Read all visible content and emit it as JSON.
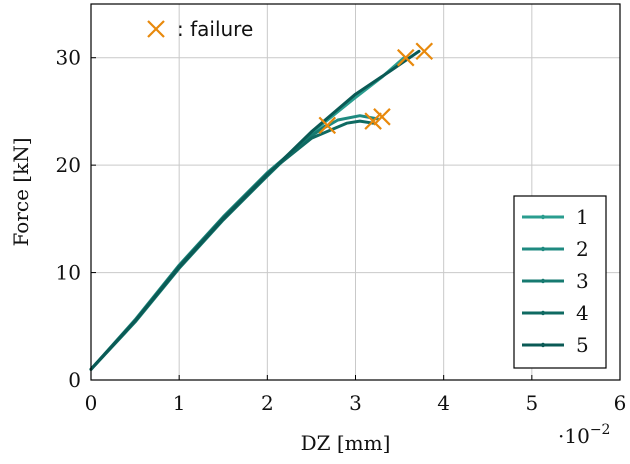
{
  "chart_data": {
    "type": "line",
    "xlabel": "DZ [mm]",
    "ylabel": "Force [kN]",
    "x_multiplier_label": "·10",
    "x_multiplier_exp": "−2",
    "xlim": [
      0,
      6
    ],
    "ylim": [
      0,
      35
    ],
    "x_ticks": [
      0,
      1,
      2,
      3,
      4,
      5,
      6
    ],
    "y_ticks": [
      0,
      10,
      20,
      30
    ],
    "grid": true,
    "legend_position": "bottom-right",
    "annotation": {
      "marker_label": ": failure",
      "color": "#e8890c"
    },
    "series": [
      {
        "name": "1",
        "color": "#2a9d8f",
        "x": [
          0,
          0.5,
          1.0,
          1.5,
          2.0,
          2.5,
          3.0,
          3.3,
          3.55
        ],
        "y": [
          1,
          5.5,
          10.5,
          15.0,
          19.0,
          23.0,
          26.3,
          28.2,
          30.0
        ]
      },
      {
        "name": "2",
        "color": "#1f8a80",
        "x": [
          0,
          0.5,
          1.0,
          1.5,
          2.0,
          2.5,
          2.8,
          3.05,
          3.25
        ],
        "y": [
          1,
          5.6,
          10.7,
          15.2,
          19.3,
          22.8,
          24.2,
          24.6,
          24.3
        ]
      },
      {
        "name": "3",
        "color": "#167a70",
        "x": [
          0,
          0.5,
          1.0,
          1.5,
          2.0,
          2.4,
          2.55,
          2.65
        ],
        "y": [
          1,
          5.4,
          10.4,
          14.9,
          19.0,
          22.2,
          23.0,
          23.6
        ]
      },
      {
        "name": "4",
        "color": "#0f6a62",
        "x": [
          0,
          0.5,
          1.0,
          1.5,
          2.0,
          2.5,
          2.9,
          3.05,
          3.2
        ],
        "y": [
          1,
          5.5,
          10.6,
          15.1,
          19.2,
          22.5,
          23.9,
          24.1,
          23.9
        ]
      },
      {
        "name": "5",
        "color": "#0a5a55",
        "x": [
          0,
          0.5,
          1.0,
          1.5,
          2.0,
          2.5,
          3.0,
          3.4,
          3.72
        ],
        "y": [
          1,
          5.5,
          10.5,
          15.0,
          19.1,
          23.1,
          26.6,
          28.8,
          30.6
        ]
      }
    ],
    "failure_points": [
      {
        "x": 3.57,
        "y": 30.0
      },
      {
        "x": 3.78,
        "y": 30.6
      },
      {
        "x": 3.3,
        "y": 24.5
      },
      {
        "x": 3.2,
        "y": 24.1
      },
      {
        "x": 2.68,
        "y": 23.7
      }
    ]
  }
}
